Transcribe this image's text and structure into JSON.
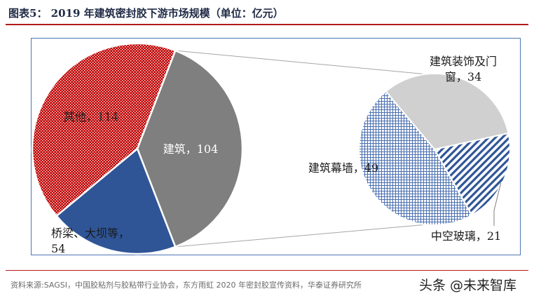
{
  "page": {
    "title": "图表5：  2019 年建筑密封胶下游市场规模（单位：亿元）",
    "source": "资料来源:SAGSI，中国胶粘剂与胶粘带行业协会，东方雨虹 2020 年密封胶宣传资料，华泰证券研究所",
    "watermark": "头条 @未来智库"
  },
  "chart_data": {
    "type": "pie",
    "units": "亿元",
    "title": "2019 年建筑密封胶下游市场规模（单位：亿元）",
    "main_pie": {
      "slices": [
        {
          "label": "建筑",
          "value": 104,
          "color": "#7f7f7f",
          "pattern": "solid",
          "label_text": "建筑，104"
        },
        {
          "label": "桥梁、大坝等",
          "value": 54,
          "color": "#2f5597",
          "pattern": "solid",
          "label_text": "桥梁、大坝等，54"
        },
        {
          "label": "其他",
          "value": 114,
          "color": "#c00000",
          "pattern": "dots",
          "label_text": "其他，114"
        }
      ]
    },
    "breakdown": {
      "of": "建筑",
      "slices": [
        {
          "label": "建筑装饰及门窗",
          "value": 34,
          "color": "#d0d0d0",
          "pattern": "solid",
          "label_text": "建筑装饰及门窗，34"
        },
        {
          "label": "中空玻璃",
          "value": 21,
          "color": "#2f5597",
          "pattern": "diagonal-stripes",
          "label_text": "中空玻璃，21"
        },
        {
          "label": "建筑幕墙",
          "value": 49,
          "color": "#2f5597",
          "pattern": "grid",
          "label_text": "建筑幕墙，49"
        }
      ]
    },
    "legend": "none"
  }
}
